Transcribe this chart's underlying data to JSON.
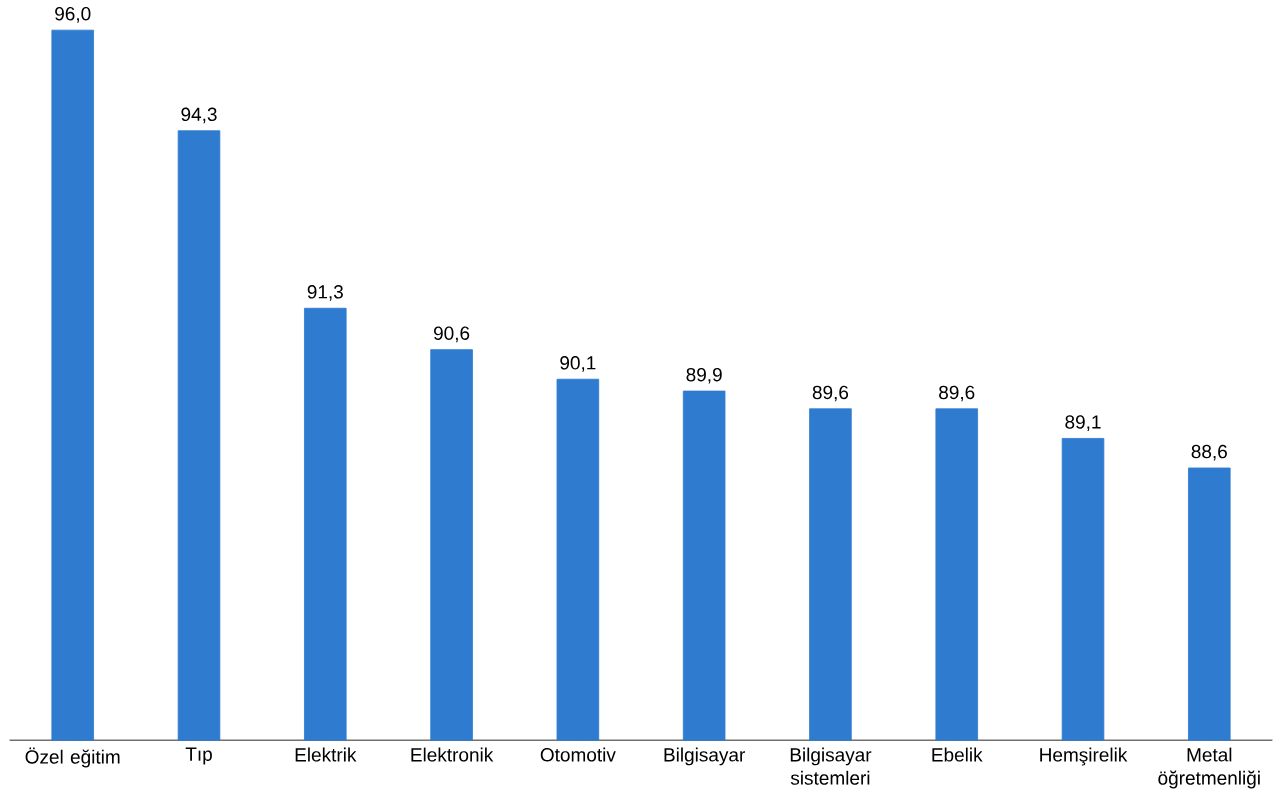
{
  "chart_data": {
    "type": "bar",
    "categories": [
      "Özel eğitim",
      "Tıp",
      "Elektrik",
      "Elektronik",
      "Otomotiv",
      "Bilgisayar",
      "Bilgisayar sistemleri",
      "Ebelik",
      "Hemşirelik",
      "Metal öğretmenliği"
    ],
    "values": [
      96.0,
      94.3,
      91.3,
      90.6,
      90.1,
      89.9,
      89.6,
      89.6,
      89.1,
      88.6
    ],
    "value_labels": [
      "96,0",
      "94,3",
      "91,3",
      "90,6",
      "90,1",
      "89,9",
      "89,6",
      "89,6",
      "89,1",
      "88,6"
    ],
    "color": "#2e7bcf",
    "ylim": [
      84,
      96
    ]
  }
}
